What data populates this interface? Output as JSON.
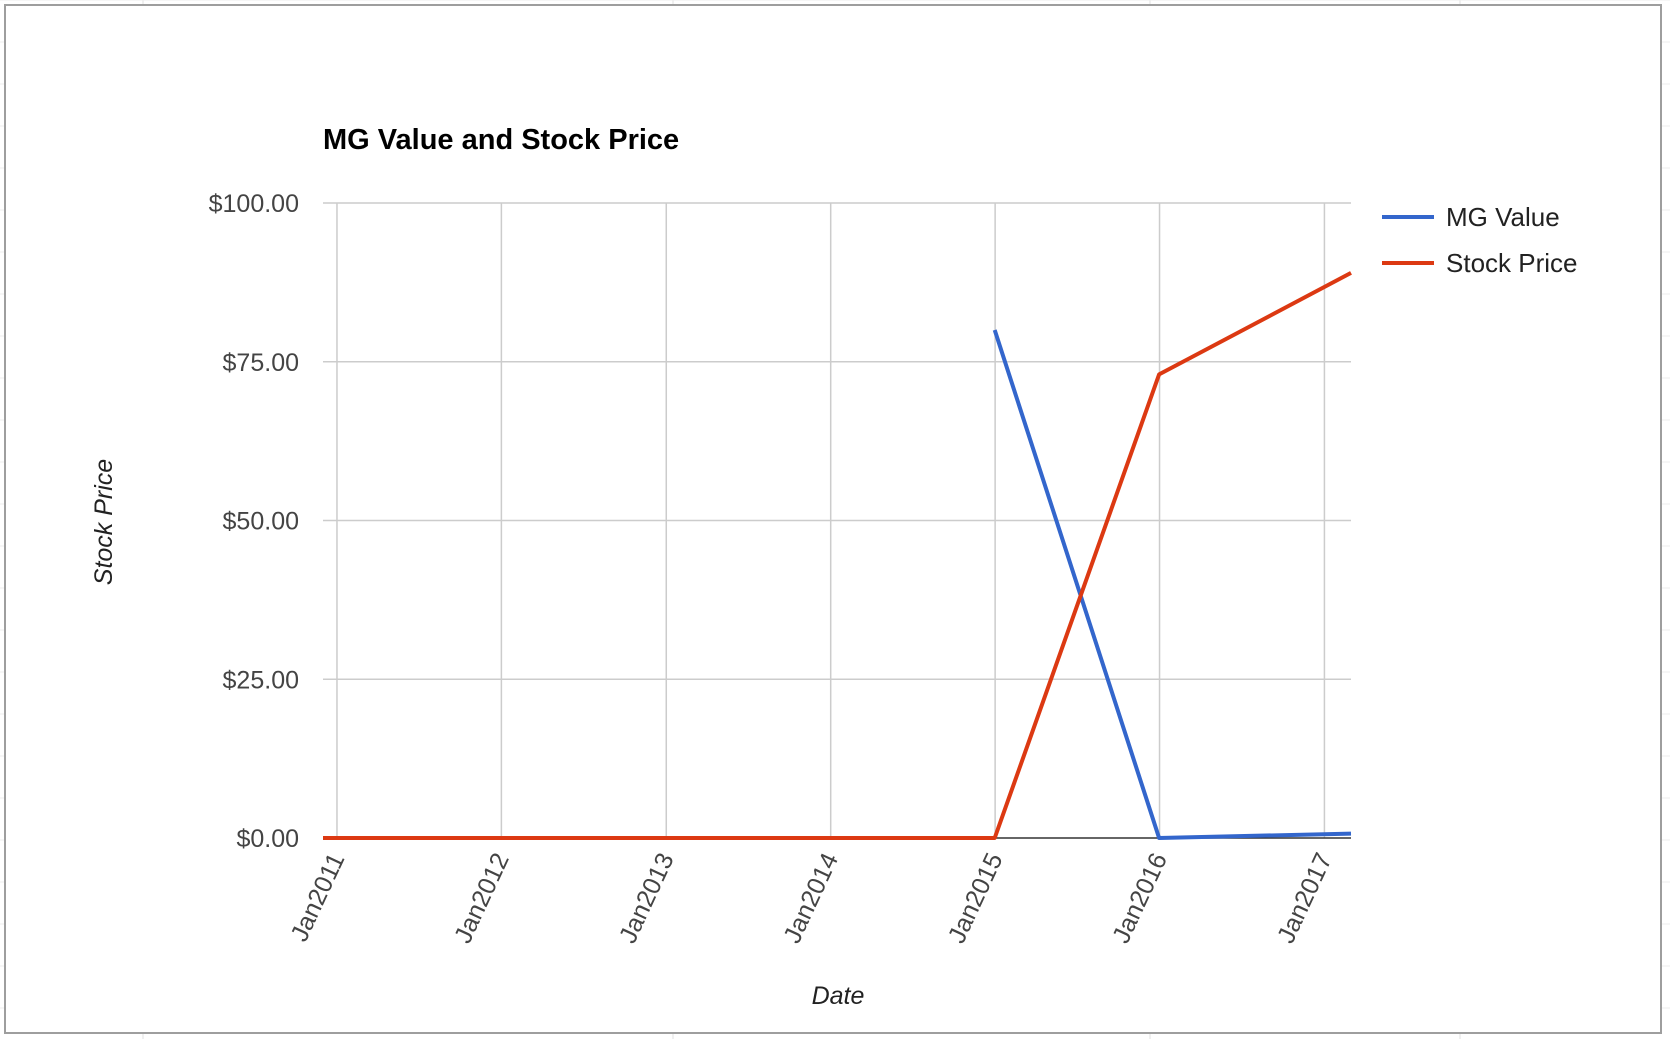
{
  "chart_data": {
    "type": "line",
    "title": "MG Value and Stock Price",
    "xlabel": "Date",
    "ylabel": "Stock Price",
    "ylim": [
      0,
      100
    ],
    "y_ticks": [
      "$100.00",
      "$75.00",
      "$50.00",
      "$25.00",
      "$0.00"
    ],
    "y_tick_values": [
      100,
      75,
      50,
      25,
      0
    ],
    "x_ticks": [
      "Jan2011",
      "Jan2012",
      "Jan2013",
      "Jan2014",
      "Jan2015",
      "Jan2016",
      "Jan2017"
    ],
    "x_range": [
      "2010-12-01",
      "2017-03-01"
    ],
    "grid": true,
    "legend": "right",
    "series": [
      {
        "name": "MG Value",
        "color": "#3366cc",
        "points": [
          {
            "x": "2014-12-31",
            "y": 80
          },
          {
            "x": "2015-12-31",
            "y": 0
          },
          {
            "x": "2017-03-01",
            "y": 0.7
          }
        ]
      },
      {
        "name": "Stock Price",
        "color": "#dc3912",
        "points": [
          {
            "x": "2010-12-01",
            "y": 0
          },
          {
            "x": "2014-12-31",
            "y": 0
          },
          {
            "x": "2015-12-31",
            "y": 73
          },
          {
            "x": "2017-03-01",
            "y": 89
          }
        ]
      }
    ]
  }
}
